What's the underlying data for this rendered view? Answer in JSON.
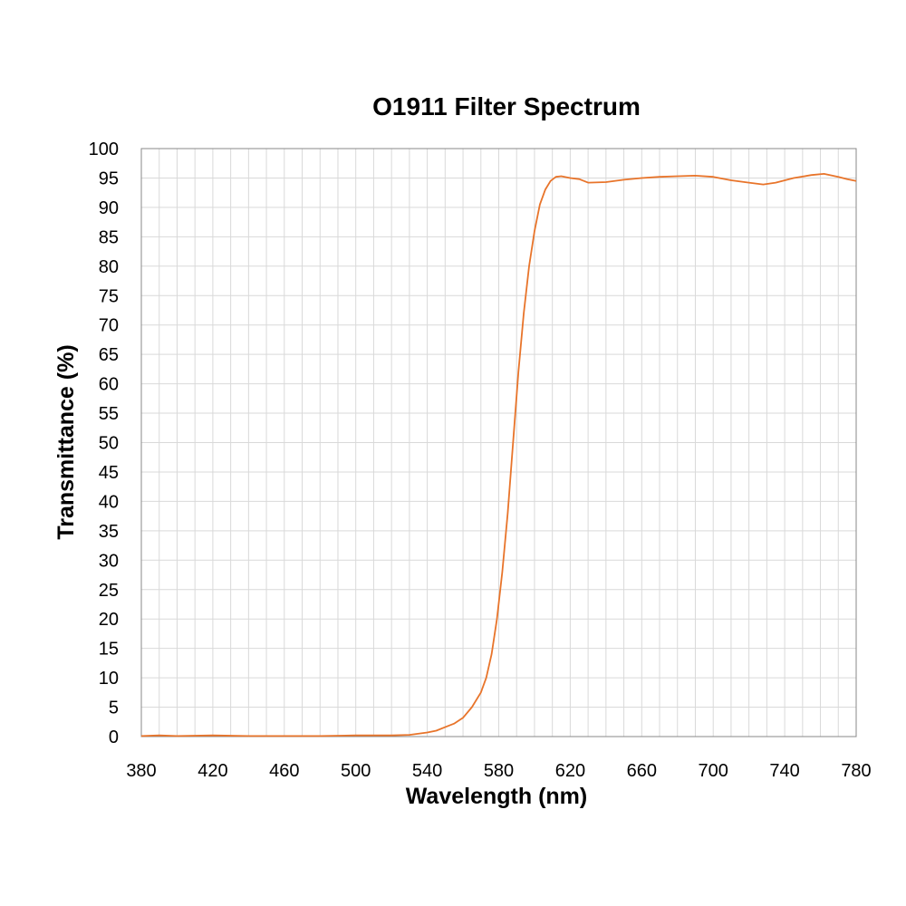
{
  "chart_data": {
    "type": "line",
    "title": "O1911 Filter Spectrum",
    "xlabel": "Wavelength (nm)",
    "ylabel": "Transmittance (%)",
    "xlim": [
      380,
      780
    ],
    "ylim": [
      0,
      100
    ],
    "x_ticks": [
      380,
      420,
      460,
      500,
      540,
      580,
      620,
      660,
      700,
      740,
      780
    ],
    "y_ticks": [
      0,
      5,
      10,
      15,
      20,
      25,
      30,
      35,
      40,
      45,
      50,
      55,
      60,
      65,
      70,
      75,
      80,
      85,
      90,
      95,
      100
    ],
    "grid": true,
    "legend": "none",
    "series": [
      {
        "color": "#e8742a",
        "points": [
          [
            380,
            0.1
          ],
          [
            390,
            0.2
          ],
          [
            400,
            0.1
          ],
          [
            420,
            0.2
          ],
          [
            440,
            0.1
          ],
          [
            460,
            0.1
          ],
          [
            480,
            0.1
          ],
          [
            500,
            0.2
          ],
          [
            520,
            0.2
          ],
          [
            530,
            0.3
          ],
          [
            540,
            0.7
          ],
          [
            545,
            1.0
          ],
          [
            550,
            1.6
          ],
          [
            555,
            2.2
          ],
          [
            560,
            3.2
          ],
          [
            565,
            5.0
          ],
          [
            570,
            7.5
          ],
          [
            573,
            10.0
          ],
          [
            576,
            14.0
          ],
          [
            579,
            20.0
          ],
          [
            582,
            28.0
          ],
          [
            585,
            38.0
          ],
          [
            588,
            50.0
          ],
          [
            591,
            62.0
          ],
          [
            594,
            72.0
          ],
          [
            597,
            80.0
          ],
          [
            600,
            86.0
          ],
          [
            603,
            90.5
          ],
          [
            606,
            93.0
          ],
          [
            609,
            94.5
          ],
          [
            612,
            95.2
          ],
          [
            615,
            95.3
          ],
          [
            620,
            95.0
          ],
          [
            625,
            94.8
          ],
          [
            630,
            94.2
          ],
          [
            640,
            94.3
          ],
          [
            650,
            94.7
          ],
          [
            660,
            95.0
          ],
          [
            670,
            95.2
          ],
          [
            680,
            95.3
          ],
          [
            690,
            95.4
          ],
          [
            700,
            95.2
          ],
          [
            710,
            94.6
          ],
          [
            720,
            94.2
          ],
          [
            728,
            93.9
          ],
          [
            735,
            94.2
          ],
          [
            745,
            95.0
          ],
          [
            755,
            95.5
          ],
          [
            762,
            95.7
          ],
          [
            770,
            95.2
          ],
          [
            775,
            94.8
          ],
          [
            780,
            94.5
          ]
        ]
      }
    ]
  }
}
